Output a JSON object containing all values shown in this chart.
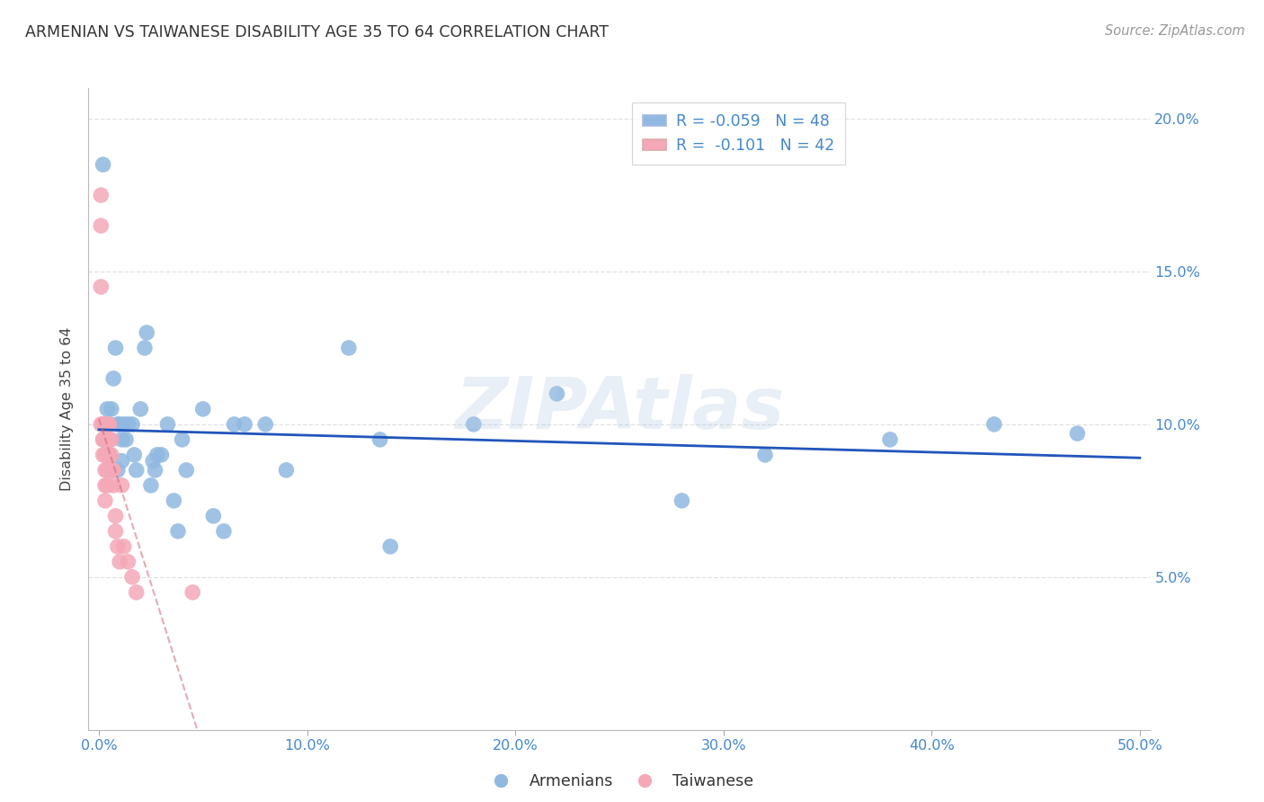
{
  "title": "ARMENIAN VS TAIWANESE DISABILITY AGE 35 TO 64 CORRELATION CHART",
  "source": "Source: ZipAtlas.com",
  "ylabel": "Disability Age 35 to 64",
  "xlabel": "",
  "xlim": [
    -0.5,
    50.5
  ],
  "ylim": [
    0.0,
    21.0
  ],
  "xticks": [
    0,
    10,
    20,
    30,
    40,
    50
  ],
  "yticks": [
    0,
    5,
    10,
    15,
    20
  ],
  "xticklabels": [
    "0.0%",
    "10.0%",
    "20.0%",
    "30.0%",
    "40.0%",
    "50.0%"
  ],
  "yticklabels_right": [
    "",
    "5.0%",
    "10.0%",
    "15.0%",
    "20.0%"
  ],
  "armenian_color": "#90B8E0",
  "taiwanese_color": "#F4A8B8",
  "armenian_line_color": "#2255BB",
  "taiwanese_line_color": "#CC6677",
  "title_color": "#333333",
  "axis_color": "#4488CC",
  "watermark": "ZIPAtlas",
  "armenians_x": [
    0.2,
    0.4,
    0.5,
    0.6,
    0.7,
    0.8,
    0.9,
    1.0,
    1.1,
    1.2,
    1.3,
    1.4,
    1.6,
    1.7,
    1.8,
    2.0,
    2.2,
    2.3,
    2.5,
    2.7,
    2.8,
    3.0,
    3.3,
    3.6,
    3.8,
    4.0,
    4.2,
    5.0,
    5.5,
    6.0,
    6.5,
    7.0,
    8.0,
    9.0,
    12.0,
    14.0,
    18.0,
    22.0,
    28.0,
    32.0,
    38.0,
    43.0,
    47.0,
    13.5,
    0.5,
    0.9,
    1.1,
    2.6
  ],
  "armenians_y": [
    18.5,
    10.5,
    10.0,
    10.5,
    11.5,
    12.5,
    10.0,
    10.0,
    9.5,
    10.0,
    9.5,
    10.0,
    10.0,
    9.0,
    8.5,
    10.5,
    12.5,
    13.0,
    8.0,
    8.5,
    9.0,
    9.0,
    10.0,
    7.5,
    6.5,
    9.5,
    8.5,
    10.5,
    7.0,
    6.5,
    10.0,
    10.0,
    10.0,
    8.5,
    12.5,
    6.0,
    10.0,
    11.0,
    7.5,
    9.0,
    9.5,
    10.0,
    9.7,
    9.5,
    9.0,
    8.5,
    8.8,
    8.8
  ],
  "taiwanese_x": [
    0.1,
    0.1,
    0.1,
    0.1,
    0.2,
    0.2,
    0.2,
    0.2,
    0.2,
    0.3,
    0.3,
    0.3,
    0.3,
    0.3,
    0.3,
    0.3,
    0.4,
    0.4,
    0.4,
    0.4,
    0.4,
    0.4,
    0.4,
    0.5,
    0.5,
    0.5,
    0.6,
    0.6,
    0.6,
    0.6,
    0.7,
    0.7,
    0.8,
    0.8,
    0.9,
    1.0,
    1.1,
    1.2,
    1.4,
    1.6,
    1.8,
    4.5
  ],
  "taiwanese_y": [
    17.5,
    16.5,
    14.5,
    10.0,
    10.0,
    9.5,
    10.0,
    9.5,
    9.0,
    10.0,
    9.5,
    9.0,
    9.0,
    8.5,
    8.0,
    7.5,
    10.0,
    9.5,
    9.5,
    9.0,
    8.5,
    8.5,
    8.0,
    10.0,
    9.5,
    9.0,
    9.5,
    9.0,
    8.5,
    8.5,
    8.5,
    8.0,
    7.0,
    6.5,
    6.0,
    5.5,
    8.0,
    6.0,
    5.5,
    5.0,
    4.5,
    4.5
  ]
}
